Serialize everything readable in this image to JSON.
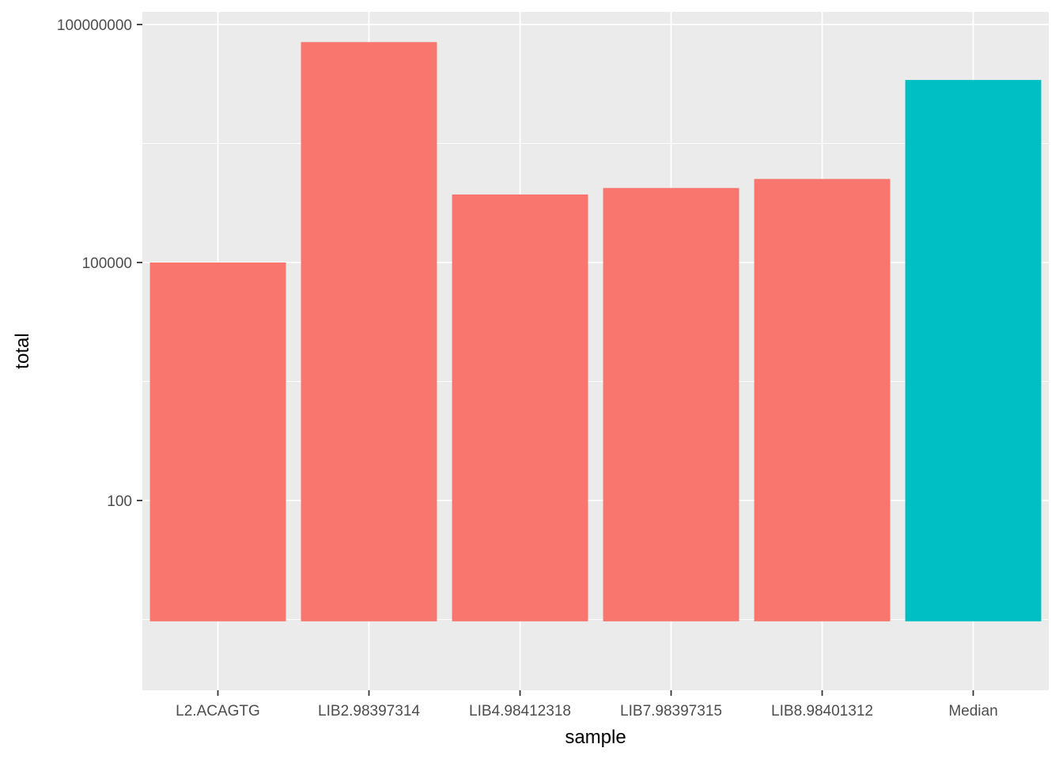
{
  "chart_data": {
    "type": "bar",
    "xlabel": "sample",
    "ylabel": "total",
    "y_scale": "log10",
    "ylim": [
      3,
      100000000
    ],
    "y_ticks": [
      {
        "value": 100,
        "label": "100"
      },
      {
        "value": 100000,
        "label": "100000"
      },
      {
        "value": 100000000,
        "label": "100000000"
      }
    ],
    "grid": true,
    "legend": "none",
    "categories": [
      "L2.ACAGTG",
      "LIB2.98397314",
      "LIB4.98412318",
      "LIB7.98397315",
      "LIB8.98401312",
      "Median"
    ],
    "values": [
      100000,
      60000000,
      720000,
      870000,
      1130000,
      20000000
    ],
    "bar_colors": [
      "#F8766D",
      "#F8766D",
      "#F8766D",
      "#F8766D",
      "#F8766D",
      "#00BFC4"
    ]
  },
  "colors": {
    "panel_background": "#EBEBEB",
    "grid_line": "#FFFFFF",
    "axis_text": "#4D4D4D",
    "axis_tick": "#333333"
  }
}
